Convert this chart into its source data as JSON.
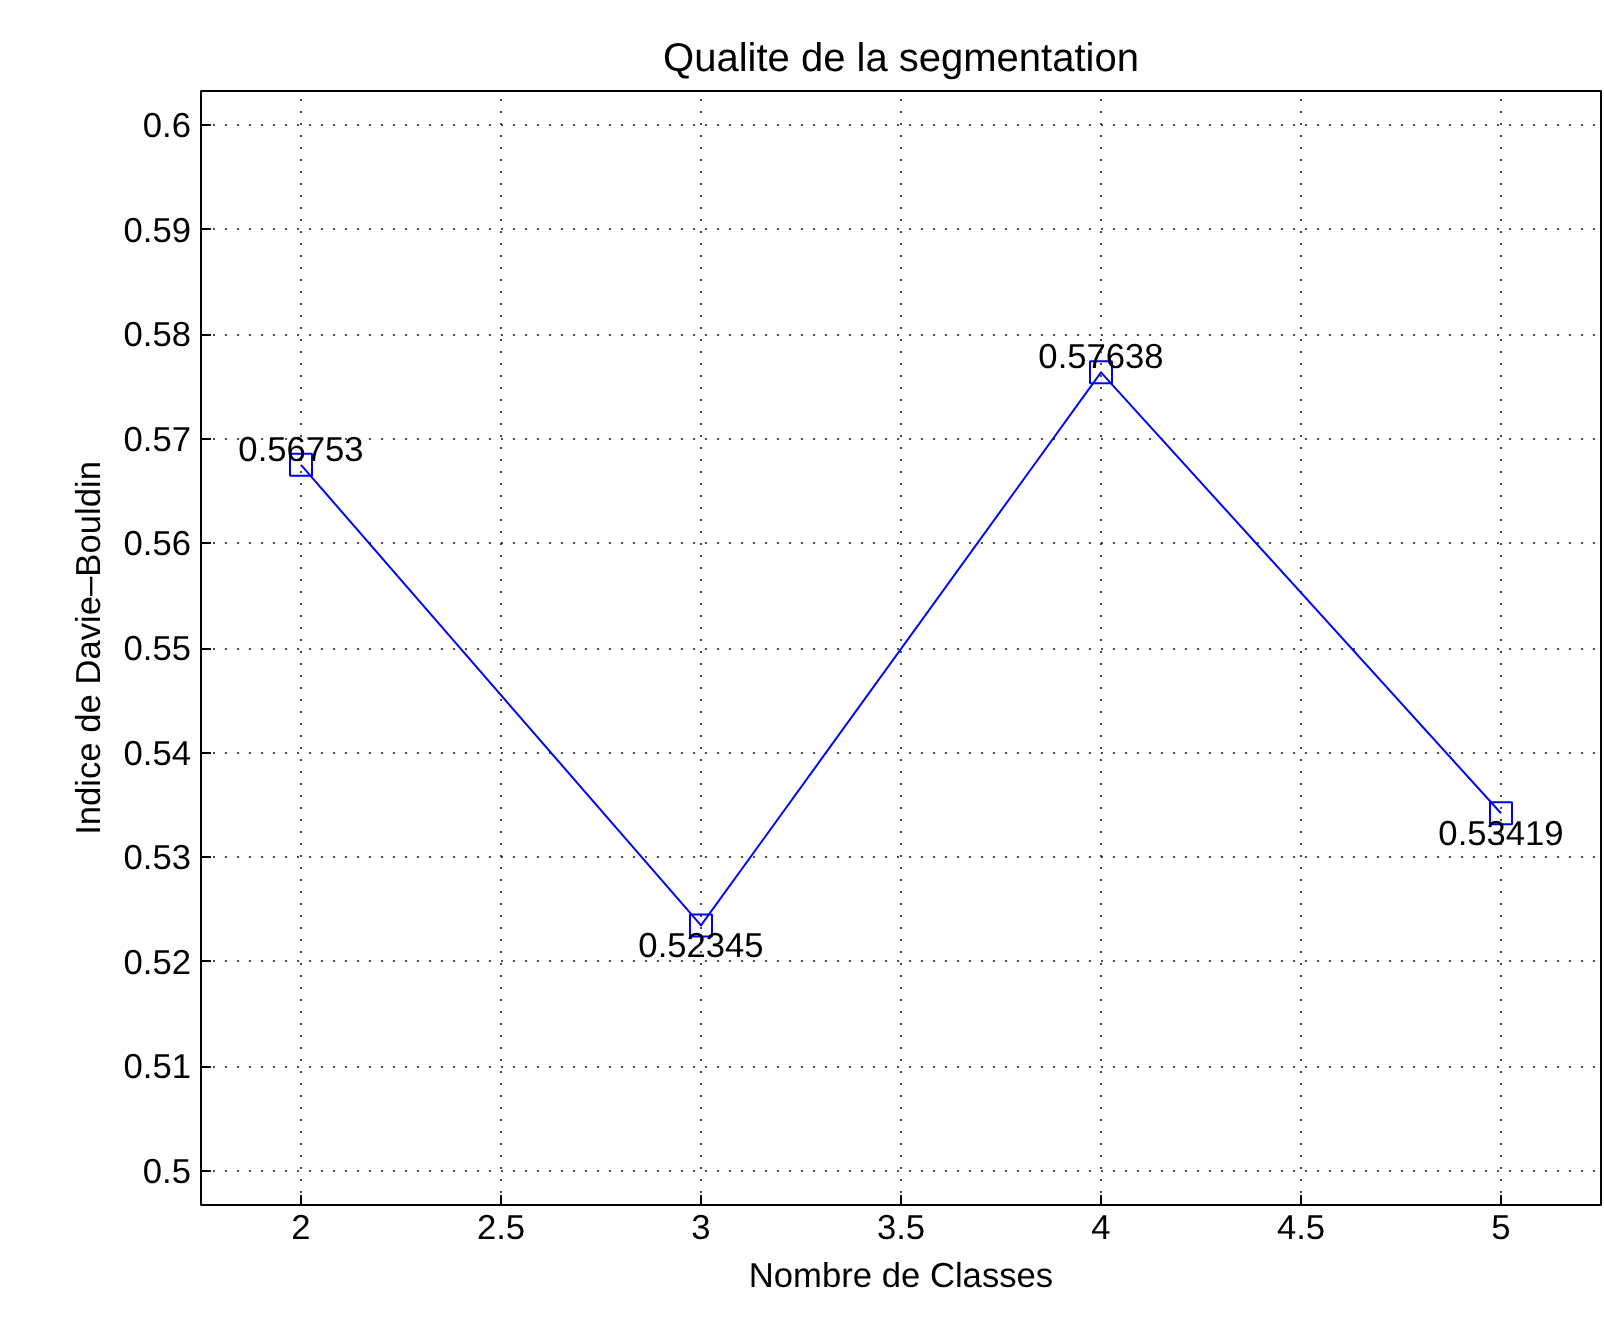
{
  "chart_data": {
    "type": "line",
    "title": "Qualite de la segmentation",
    "xlabel": "Nombre de Classes",
    "ylabel": "Indice de Davie–Bouldin",
    "x": [
      2,
      3,
      4,
      5
    ],
    "series": [
      {
        "color": "#0000ff",
        "values": [
          0.56753,
          0.52345,
          0.57638,
          0.53419
        ]
      }
    ],
    "xlim": [
      1.75,
      5.25
    ],
    "xticks": [
      2,
      2.5,
      3,
      3.5,
      4,
      4.5,
      5
    ],
    "ylim": [
      0.4967,
      0.6033
    ],
    "yticks": [
      0.5,
      0.51,
      0.52,
      0.53,
      0.54,
      0.55,
      0.56,
      0.57,
      0.58,
      0.59,
      0.6
    ],
    "grid": true,
    "marker": "square",
    "line_style": "solid",
    "data_labels": true
  }
}
